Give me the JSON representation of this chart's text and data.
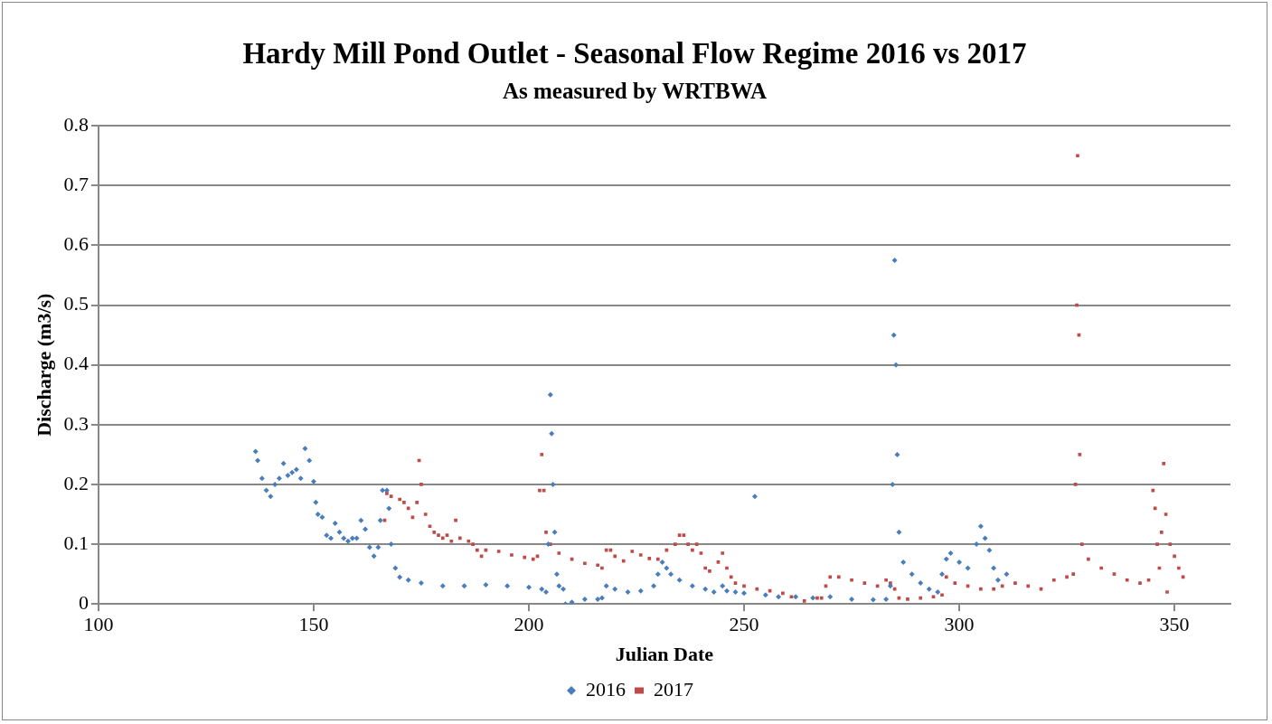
{
  "chart_data": {
    "type": "scatter",
    "title": "Hardy Mill Pond Outlet - Seasonal Flow Regime 2016 vs 2017",
    "subtitle": "As measured by WRTBWA",
    "xlabel": "Julian Date",
    "ylabel": "Discharge (m3/s)",
    "xlim": [
      100,
      363
    ],
    "xticks": [
      100,
      150,
      200,
      250,
      300,
      350
    ],
    "ylim": [
      0,
      0.8
    ],
    "yticks": [
      0,
      0.1,
      0.2,
      0.3,
      0.4,
      0.5,
      0.6,
      0.7,
      0.8
    ],
    "grid": "y",
    "legend": "bottom",
    "series": [
      {
        "name": "2016",
        "color": "#4a7ebb",
        "marker": "diamond",
        "x": [
          136.5,
          137,
          138,
          139,
          140,
          141,
          142,
          143,
          144,
          145,
          146,
          147,
          148,
          149,
          150,
          150.5,
          151,
          152,
          153,
          154,
          155,
          156,
          157,
          158,
          159,
          160,
          161,
          162,
          163,
          164,
          165,
          165.5,
          166,
          167,
          167.5,
          168,
          169,
          170,
          172,
          175,
          180,
          185,
          190,
          195,
          200,
          203,
          204,
          204.5,
          205,
          205.3,
          205.6,
          206,
          206.5,
          207,
          208,
          208.5,
          210,
          213,
          216,
          217,
          218,
          220,
          223,
          226,
          229,
          230,
          231,
          232,
          233,
          235,
          238,
          241,
          243,
          245,
          246,
          248,
          250,
          252.5,
          255,
          258,
          262,
          266,
          270,
          275,
          280,
          283,
          284,
          284.5,
          284.8,
          285,
          285.3,
          285.6,
          286,
          287,
          289,
          291,
          293,
          295,
          296,
          297,
          298,
          300,
          302,
          304,
          305,
          306,
          307,
          308,
          309,
          311
        ],
        "values": [
          0.255,
          0.24,
          0.21,
          0.19,
          0.18,
          0.2,
          0.21,
          0.235,
          0.215,
          0.22,
          0.225,
          0.21,
          0.26,
          0.24,
          0.205,
          0.17,
          0.15,
          0.145,
          0.115,
          0.11,
          0.135,
          0.12,
          0.11,
          0.105,
          0.11,
          0.11,
          0.14,
          0.125,
          0.095,
          0.08,
          0.095,
          0.14,
          0.19,
          0.19,
          0.16,
          0.1,
          0.06,
          0.045,
          0.04,
          0.035,
          0.03,
          0.03,
          0.032,
          0.03,
          0.028,
          0.025,
          0.02,
          0.1,
          0.35,
          0.285,
          0.2,
          0.12,
          0.05,
          0.03,
          0.025,
          0.0,
          0.003,
          0.008,
          0.008,
          0.01,
          0.03,
          0.025,
          0.02,
          0.022,
          0.03,
          0.05,
          0.07,
          0.06,
          0.05,
          0.04,
          0.03,
          0.025,
          0.02,
          0.03,
          0.022,
          0.02,
          0.018,
          0.18,
          0.015,
          0.012,
          0.012,
          0.01,
          0.012,
          0.008,
          0.007,
          0.008,
          0.03,
          0.2,
          0.45,
          0.575,
          0.4,
          0.25,
          0.12,
          0.07,
          0.05,
          0.035,
          0.025,
          0.02,
          0.05,
          0.075,
          0.085,
          0.07,
          0.06,
          0.1,
          0.13,
          0.11,
          0.09,
          0.06,
          0.04,
          0.05
        ]
      },
      {
        "name": "2017",
        "color": "#be4b48",
        "marker": "square",
        "x": [
          166.5,
          167,
          168,
          170,
          171,
          172,
          173,
          174,
          174.5,
          175,
          176,
          177,
          178,
          179,
          180,
          181,
          182,
          183,
          184,
          186,
          187,
          188,
          189,
          190,
          193,
          196,
          199,
          201,
          202,
          202.5,
          203,
          203.5,
          204,
          205,
          207,
          210,
          213,
          216,
          217,
          218,
          219,
          220,
          222,
          224,
          226,
          228,
          230,
          232,
          234,
          235,
          236,
          237,
          238,
          239,
          240,
          241,
          242,
          244,
          245,
          246,
          247,
          248,
          250,
          253,
          256,
          259,
          261,
          264,
          267,
          268,
          269,
          270,
          272,
          275,
          278,
          281,
          283,
          284,
          285,
          286,
          288,
          291,
          294,
          296,
          297,
          299,
          302,
          305,
          308,
          310,
          313,
          316,
          319,
          322,
          325,
          326.5,
          327,
          327.3,
          327.5,
          327.8,
          328,
          328.5,
          330,
          333,
          336,
          339,
          342,
          344,
          345,
          345.5,
          346,
          346.5,
          347,
          347.5,
          348,
          348.3,
          349,
          350,
          351,
          352
        ],
        "values": [
          0.14,
          0.185,
          0.18,
          0.175,
          0.17,
          0.16,
          0.145,
          0.17,
          0.24,
          0.2,
          0.15,
          0.13,
          0.12,
          0.115,
          0.11,
          0.115,
          0.105,
          0.14,
          0.11,
          0.105,
          0.1,
          0.09,
          0.08,
          0.09,
          0.088,
          0.082,
          0.078,
          0.075,
          0.08,
          0.19,
          0.25,
          0.19,
          0.12,
          0.1,
          0.085,
          0.075,
          0.068,
          0.065,
          0.06,
          0.09,
          0.09,
          0.08,
          0.072,
          0.088,
          0.082,
          0.076,
          0.075,
          0.09,
          0.1,
          0.115,
          0.115,
          0.1,
          0.09,
          0.1,
          0.085,
          0.06,
          0.055,
          0.07,
          0.085,
          0.06,
          0.045,
          0.035,
          0.03,
          0.025,
          0.022,
          0.018,
          0.012,
          0.005,
          0.01,
          0.01,
          0.03,
          0.045,
          0.045,
          0.04,
          0.035,
          0.03,
          0.04,
          0.035,
          0.025,
          0.01,
          0.008,
          0.01,
          0.012,
          0.015,
          0.045,
          0.035,
          0.03,
          0.025,
          0.025,
          0.03,
          0.035,
          0.03,
          0.025,
          0.04,
          0.045,
          0.05,
          0.2,
          0.5,
          0.75,
          0.45,
          0.25,
          0.1,
          0.075,
          0.06,
          0.05,
          0.04,
          0.035,
          0.04,
          0.19,
          0.16,
          0.1,
          0.06,
          0.12,
          0.235,
          0.15,
          0.02,
          0.1,
          0.08,
          0.06,
          0.045
        ]
      }
    ]
  }
}
